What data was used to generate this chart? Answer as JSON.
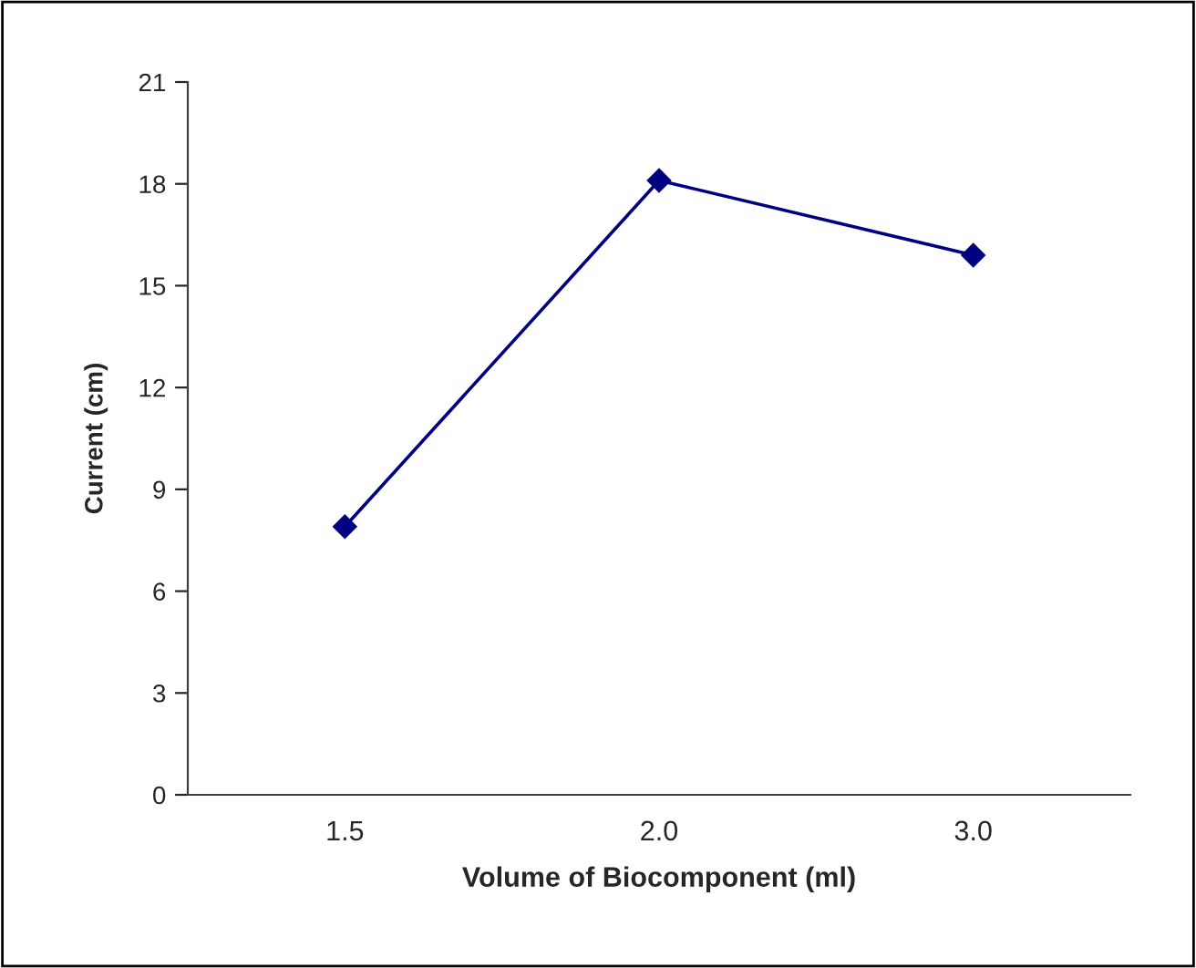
{
  "chart_data": {
    "type": "line",
    "xlabel": "Volume of Biocomponent (ml)",
    "ylabel": "Current (cm)",
    "categories": [
      "1.5",
      "2.0",
      "3.0"
    ],
    "series": [
      {
        "color": "#000080",
        "values": [
          7.9,
          18.1,
          15.9
        ]
      }
    ],
    "ylim": [
      0,
      21
    ],
    "yticks": [
      0,
      3,
      6,
      9,
      12,
      15,
      18,
      21
    ],
    "marker": "diamond",
    "line_style": "solid",
    "grid": false,
    "legend": false
  }
}
